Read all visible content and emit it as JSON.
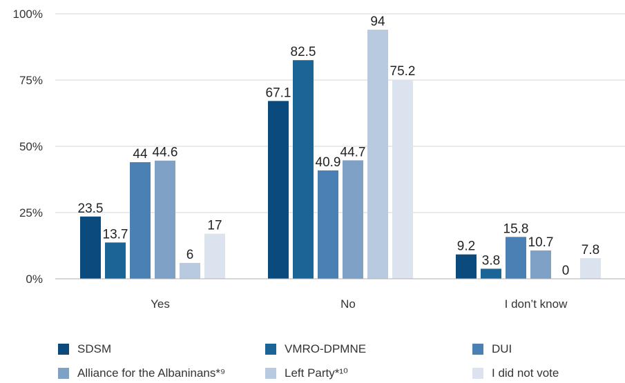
{
  "chart_data": {
    "type": "bar",
    "title": "",
    "xlabel": "",
    "ylabel": "",
    "ylim": [
      0,
      100
    ],
    "y_ticks": [
      {
        "value": 0,
        "label": "0%"
      },
      {
        "value": 25,
        "label": "25%"
      },
      {
        "value": 50,
        "label": "50%"
      },
      {
        "value": 75,
        "label": "75%"
      },
      {
        "value": 100,
        "label": "100%"
      }
    ],
    "grid": true,
    "legend_position": "bottom",
    "categories": [
      "Yes",
      "No",
      "I don’t know"
    ],
    "series": [
      {
        "name": "SDSM",
        "color": "#0a4a7c",
        "values": [
          23.5,
          67.1,
          9.2
        ],
        "labels": [
          "23.5",
          "67.1",
          "9.2"
        ]
      },
      {
        "name": "VMRO-DPMNE",
        "color": "#1b6496",
        "values": [
          13.7,
          82.5,
          3.8
        ],
        "labels": [
          "13.7",
          "82.5",
          "3.8"
        ]
      },
      {
        "name": "DUI",
        "color": "#4a80b3",
        "values": [
          44,
          40.9,
          15.8
        ],
        "labels": [
          "44",
          "40.9",
          "15.8"
        ]
      },
      {
        "name": "Alliance for the Albaninans*⁹",
        "color": "#7fa1c6",
        "values": [
          44.6,
          44.7,
          10.7
        ],
        "labels": [
          "44.6",
          "44.7",
          "10.7"
        ]
      },
      {
        "name": "Left Party*¹⁰",
        "color": "#b8cae0",
        "values": [
          6,
          94,
          0
        ],
        "labels": [
          "6",
          "94",
          "0"
        ]
      },
      {
        "name": "I did not vote",
        "color": "#dbe3ef",
        "values": [
          17,
          75.2,
          7.8
        ],
        "labels": [
          "17",
          "75.2",
          "7.8"
        ]
      }
    ]
  }
}
